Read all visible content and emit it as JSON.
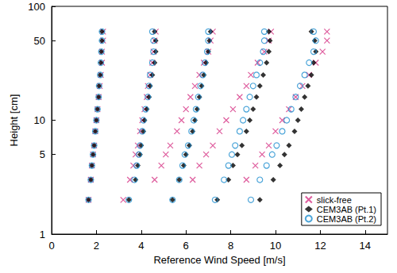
{
  "chart_data": {
    "type": "scatter",
    "x_label": "Reference Wind Speed [m/s]",
    "y_label": "Height [cm]",
    "xlim": [
      0,
      15
    ],
    "xticks": [
      0,
      2,
      4,
      6,
      8,
      10,
      12,
      14
    ],
    "ylim": [
      1,
      100
    ],
    "yticks": [
      1,
      5,
      10,
      50,
      100
    ],
    "log": "y",
    "grid": false,
    "legend": "lower right",
    "series": [
      {
        "name": "slick-free",
        "color": "#d63384",
        "marker": "x",
        "values": [
          [
            1.65,
            2
          ],
          [
            1.75,
            3
          ],
          [
            1.8,
            4
          ],
          [
            1.85,
            5
          ],
          [
            1.9,
            6
          ],
          [
            1.95,
            8
          ],
          [
            2.0,
            10
          ],
          [
            2.05,
            12.5
          ],
          [
            2.1,
            16
          ],
          [
            2.15,
            20
          ],
          [
            2.2,
            25
          ],
          [
            2.25,
            32
          ],
          [
            2.25,
            40
          ],
          [
            2.3,
            50
          ],
          [
            2.3,
            60
          ],
          [
            3.2,
            2
          ],
          [
            3.5,
            3
          ],
          [
            3.65,
            4
          ],
          [
            3.75,
            5
          ],
          [
            3.85,
            6
          ],
          [
            3.95,
            8
          ],
          [
            4.05,
            10
          ],
          [
            4.15,
            12.5
          ],
          [
            4.25,
            16
          ],
          [
            4.3,
            20
          ],
          [
            4.4,
            25
          ],
          [
            4.5,
            32
          ],
          [
            4.55,
            40
          ],
          [
            4.6,
            50
          ],
          [
            4.65,
            60
          ],
          [
            4.6,
            3
          ],
          [
            4.9,
            4
          ],
          [
            5.1,
            5
          ],
          [
            5.3,
            6
          ],
          [
            5.6,
            8
          ],
          [
            5.8,
            10
          ],
          [
            6.0,
            12.5
          ],
          [
            6.2,
            16
          ],
          [
            6.4,
            20
          ],
          [
            6.6,
            25
          ],
          [
            6.8,
            32
          ],
          [
            7.0,
            40
          ],
          [
            7.1,
            50
          ],
          [
            7.2,
            60
          ],
          [
            6.3,
            3
          ],
          [
            6.6,
            4
          ],
          [
            6.9,
            5
          ],
          [
            7.2,
            6
          ],
          [
            7.5,
            8
          ],
          [
            7.8,
            10
          ],
          [
            8.1,
            12.5
          ],
          [
            8.4,
            16
          ],
          [
            8.7,
            20
          ],
          [
            8.9,
            25
          ],
          [
            9.2,
            32
          ],
          [
            9.5,
            40
          ],
          [
            9.7,
            50
          ],
          [
            9.8,
            60
          ],
          [
            8.7,
            3
          ],
          [
            9.1,
            4
          ],
          [
            9.4,
            5
          ],
          [
            9.7,
            6
          ],
          [
            10.0,
            8
          ],
          [
            10.3,
            10
          ],
          [
            10.6,
            12.5
          ],
          [
            10.9,
            16
          ],
          [
            11.2,
            20
          ],
          [
            11.5,
            25
          ],
          [
            11.8,
            32
          ],
          [
            12.1,
            40
          ],
          [
            12.3,
            50
          ],
          [
            12.3,
            60
          ]
        ]
      },
      {
        "name": "CEM3AB (Pt.1)",
        "color": "#000000",
        "marker": "diamond",
        "values": [
          [
            1.65,
            2
          ],
          [
            1.75,
            3
          ],
          [
            1.8,
            4
          ],
          [
            1.85,
            5
          ],
          [
            1.9,
            6
          ],
          [
            1.95,
            8
          ],
          [
            2.0,
            10
          ],
          [
            2.05,
            12.5
          ],
          [
            2.1,
            16
          ],
          [
            2.12,
            20
          ],
          [
            2.17,
            25
          ],
          [
            2.2,
            32
          ],
          [
            2.22,
            40
          ],
          [
            2.25,
            50
          ],
          [
            2.25,
            60
          ],
          [
            3.45,
            2
          ],
          [
            3.75,
            3
          ],
          [
            3.85,
            4
          ],
          [
            3.95,
            5
          ],
          [
            4.0,
            6
          ],
          [
            4.1,
            8
          ],
          [
            4.15,
            10
          ],
          [
            4.25,
            12.5
          ],
          [
            4.35,
            16
          ],
          [
            4.4,
            20
          ],
          [
            4.5,
            25
          ],
          [
            4.6,
            32
          ],
          [
            4.65,
            40
          ],
          [
            4.65,
            50
          ],
          [
            4.6,
            60
          ],
          [
            5.4,
            2
          ],
          [
            5.7,
            3
          ],
          [
            5.9,
            4
          ],
          [
            6.0,
            5
          ],
          [
            6.15,
            6
          ],
          [
            6.3,
            8
          ],
          [
            6.4,
            10
          ],
          [
            6.5,
            12.5
          ],
          [
            6.6,
            16
          ],
          [
            6.7,
            20
          ],
          [
            6.8,
            25
          ],
          [
            6.9,
            32
          ],
          [
            7.0,
            40
          ],
          [
            7.05,
            50
          ],
          [
            7.1,
            60
          ],
          [
            7.4,
            2
          ],
          [
            7.9,
            3
          ],
          [
            8.1,
            4
          ],
          [
            8.3,
            5
          ],
          [
            8.5,
            6
          ],
          [
            8.7,
            8
          ],
          [
            8.85,
            10
          ],
          [
            9.0,
            12.5
          ],
          [
            9.15,
            16
          ],
          [
            9.3,
            20
          ],
          [
            9.45,
            25
          ],
          [
            9.6,
            32
          ],
          [
            9.7,
            40
          ],
          [
            9.75,
            50
          ],
          [
            9.7,
            60
          ],
          [
            9.3,
            2
          ],
          [
            9.9,
            3
          ],
          [
            10.2,
            4
          ],
          [
            10.4,
            5
          ],
          [
            10.6,
            6
          ],
          [
            10.85,
            8
          ],
          [
            11.0,
            10
          ],
          [
            11.15,
            12.5
          ],
          [
            11.3,
            16
          ],
          [
            11.45,
            20
          ],
          [
            11.6,
            25
          ],
          [
            11.7,
            32
          ],
          [
            11.8,
            40
          ],
          [
            11.75,
            50
          ],
          [
            11.6,
            60
          ]
        ]
      },
      {
        "name": "CEM3AB (Pt.2)",
        "color": "#1f8fd0",
        "marker": "circle",
        "values": [
          [
            1.65,
            2
          ],
          [
            1.75,
            3
          ],
          [
            1.8,
            4
          ],
          [
            1.85,
            5
          ],
          [
            1.9,
            6
          ],
          [
            1.95,
            8
          ],
          [
            2.0,
            10
          ],
          [
            2.05,
            12.5
          ],
          [
            2.1,
            16
          ],
          [
            2.12,
            20
          ],
          [
            2.17,
            25
          ],
          [
            2.2,
            32
          ],
          [
            2.22,
            40
          ],
          [
            2.25,
            50
          ],
          [
            2.25,
            60
          ],
          [
            3.45,
            2
          ],
          [
            3.7,
            3
          ],
          [
            3.8,
            4
          ],
          [
            3.9,
            5
          ],
          [
            3.95,
            6
          ],
          [
            4.05,
            8
          ],
          [
            4.1,
            10
          ],
          [
            4.2,
            12.5
          ],
          [
            4.3,
            16
          ],
          [
            4.35,
            20
          ],
          [
            4.4,
            25
          ],
          [
            4.5,
            32
          ],
          [
            4.55,
            40
          ],
          [
            4.55,
            50
          ],
          [
            4.5,
            60
          ],
          [
            5.4,
            2
          ],
          [
            5.7,
            3
          ],
          [
            5.85,
            4
          ],
          [
            5.95,
            5
          ],
          [
            6.1,
            6
          ],
          [
            6.25,
            8
          ],
          [
            6.35,
            10
          ],
          [
            6.45,
            12.5
          ],
          [
            6.55,
            16
          ],
          [
            6.65,
            20
          ],
          [
            6.75,
            25
          ],
          [
            6.85,
            32
          ],
          [
            6.95,
            40
          ],
          [
            7.0,
            50
          ],
          [
            7.0,
            60
          ],
          [
            7.3,
            2
          ],
          [
            7.7,
            3
          ],
          [
            7.9,
            4
          ],
          [
            8.05,
            5
          ],
          [
            8.2,
            6
          ],
          [
            8.4,
            8
          ],
          [
            8.55,
            10
          ],
          [
            8.7,
            12.5
          ],
          [
            8.85,
            16
          ],
          [
            9.0,
            20
          ],
          [
            9.15,
            25
          ],
          [
            9.3,
            32
          ],
          [
            9.45,
            40
          ],
          [
            9.5,
            50
          ],
          [
            9.5,
            60
          ],
          [
            8.9,
            2
          ],
          [
            9.3,
            3
          ],
          [
            9.6,
            4
          ],
          [
            9.85,
            5
          ],
          [
            10.05,
            6
          ],
          [
            10.3,
            8
          ],
          [
            10.5,
            10
          ],
          [
            10.7,
            12.5
          ],
          [
            10.9,
            16
          ],
          [
            11.1,
            20
          ],
          [
            11.3,
            25
          ],
          [
            11.5,
            32
          ],
          [
            11.7,
            40
          ],
          [
            11.8,
            50
          ],
          [
            11.7,
            60
          ]
        ]
      }
    ]
  }
}
